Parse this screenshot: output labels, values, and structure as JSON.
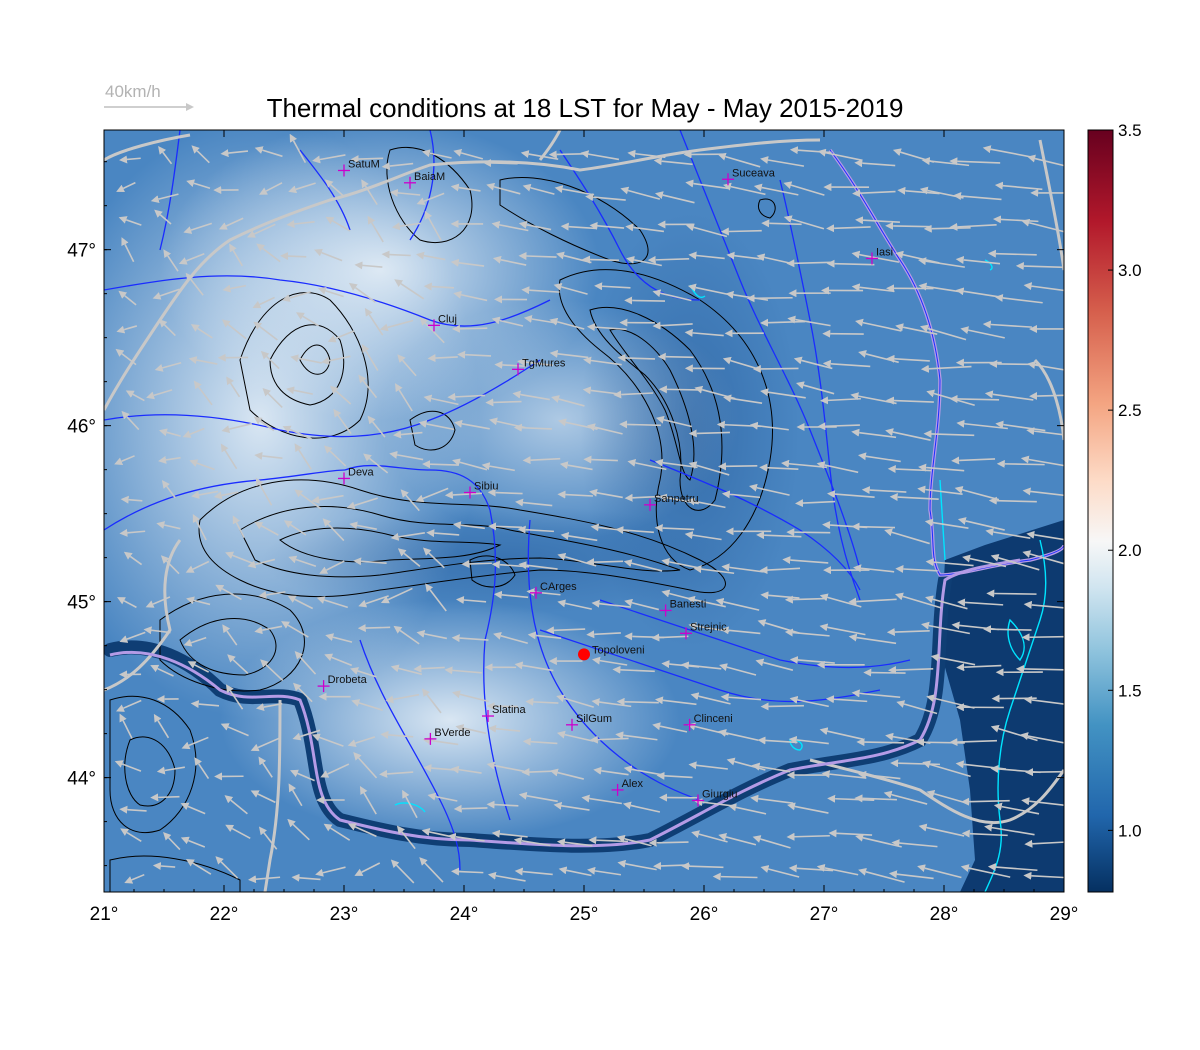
{
  "title": "Thermal conditions at 18 LST for May - May  2015-2019",
  "wind_scale_label": "40km/h",
  "x_ticks": [
    "21°",
    "22°",
    "23°",
    "24°",
    "25°",
    "26°",
    "27°",
    "28°",
    "29°"
  ],
  "y_ticks": [
    "44°",
    "45°",
    "46°",
    "47°"
  ],
  "colorbar": {
    "ticks": [
      "1.0",
      "1.5",
      "2.0",
      "2.5",
      "3.0",
      "3.5"
    ],
    "colors": [
      "#053061",
      "#2166ac",
      "#4393c3",
      "#92c5de",
      "#d1e5f0",
      "#f7f7f7",
      "#fddbc7",
      "#f4a582",
      "#d6604d",
      "#b2182b",
      "#67001f"
    ]
  },
  "colors": {
    "rivers": "#1a2cff",
    "borders": "#c8c8c8",
    "coast": "#00e5ff",
    "contours": "#000000",
    "arrows": "#c8c8c8",
    "city_marker": "#cc00cc",
    "highlight": "#ff0000"
  },
  "cities": [
    {
      "name": "SatuM",
      "lon": 23.0,
      "lat": 47.45
    },
    {
      "name": "BaiaM",
      "lon": 23.55,
      "lat": 47.38
    },
    {
      "name": "Suceava",
      "lon": 26.2,
      "lat": 47.4
    },
    {
      "name": "Iasi",
      "lon": 27.4,
      "lat": 46.95
    },
    {
      "name": "Cluj",
      "lon": 23.75,
      "lat": 46.57
    },
    {
      "name": "TgMures",
      "lon": 24.45,
      "lat": 46.32
    },
    {
      "name": "Deva",
      "lon": 23.0,
      "lat": 45.7
    },
    {
      "name": "Sibiu",
      "lon": 24.05,
      "lat": 45.62
    },
    {
      "name": "Sanpetru",
      "lon": 25.55,
      "lat": 45.55
    },
    {
      "name": "CArges",
      "lon": 24.6,
      "lat": 45.05
    },
    {
      "name": "Banesti",
      "lon": 25.68,
      "lat": 44.95
    },
    {
      "name": "Strejnic",
      "lon": 25.85,
      "lat": 44.82
    },
    {
      "name": "Drobeta",
      "lon": 22.83,
      "lat": 44.52
    },
    {
      "name": "Slatina",
      "lon": 24.2,
      "lat": 44.35
    },
    {
      "name": "SilGum",
      "lon": 24.9,
      "lat": 44.3
    },
    {
      "name": "BVerde",
      "lon": 23.72,
      "lat": 44.22
    },
    {
      "name": "Clinceni",
      "lon": 25.88,
      "lat": 44.3
    },
    {
      "name": "Alex",
      "lon": 25.28,
      "lat": 43.93
    },
    {
      "name": "Giurgiu",
      "lon": 25.95,
      "lat": 43.87
    }
  ],
  "highlight_point": {
    "name": "Topoloveni",
    "lon": 25.0,
    "lat": 44.7
  }
}
